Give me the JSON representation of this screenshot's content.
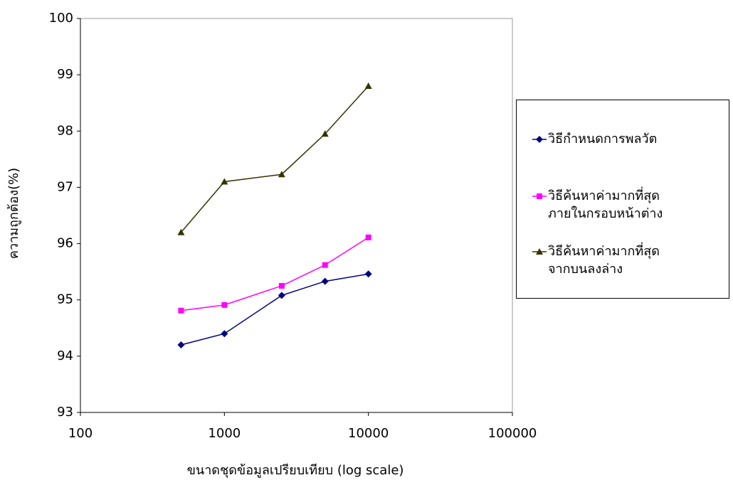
{
  "chart_data": {
    "type": "line",
    "x_label": "ขนาดชุดข้อมูลเปรียบเทียบ (log scale)",
    "y_label": "ความถูกต้อง(%)",
    "x": [
      500,
      1000,
      2500,
      5000,
      10000
    ],
    "series": [
      {
        "name": "วิธีกำหนดการพลวัต",
        "color": "#000080",
        "marker": "diamond",
        "values": [
          94.2,
          94.4,
          95.08,
          95.33,
          95.46
        ]
      },
      {
        "name": "วิธีค้นหาค่ามากที่สุด\nภายในกรอบหน้าต่าง",
        "color": "#ff00ff",
        "marker": "square",
        "values": [
          94.81,
          94.91,
          95.25,
          95.62,
          96.11
        ]
      },
      {
        "name": "วิธีค้นหาค่ามากที่สุด\nจากบนลงล่าง",
        "color": "#333300",
        "marker": "triangle",
        "values": [
          96.2,
          97.1,
          97.23,
          97.95,
          98.8
        ]
      }
    ],
    "xlim": [
      100,
      100000
    ],
    "xticks": [
      100,
      1000,
      10000,
      100000
    ],
    "x_log": true,
    "ylim": [
      93,
      100
    ],
    "yticks": [
      93,
      94,
      95,
      96,
      97,
      98,
      99,
      100
    ],
    "grid": false,
    "legend": "right"
  }
}
